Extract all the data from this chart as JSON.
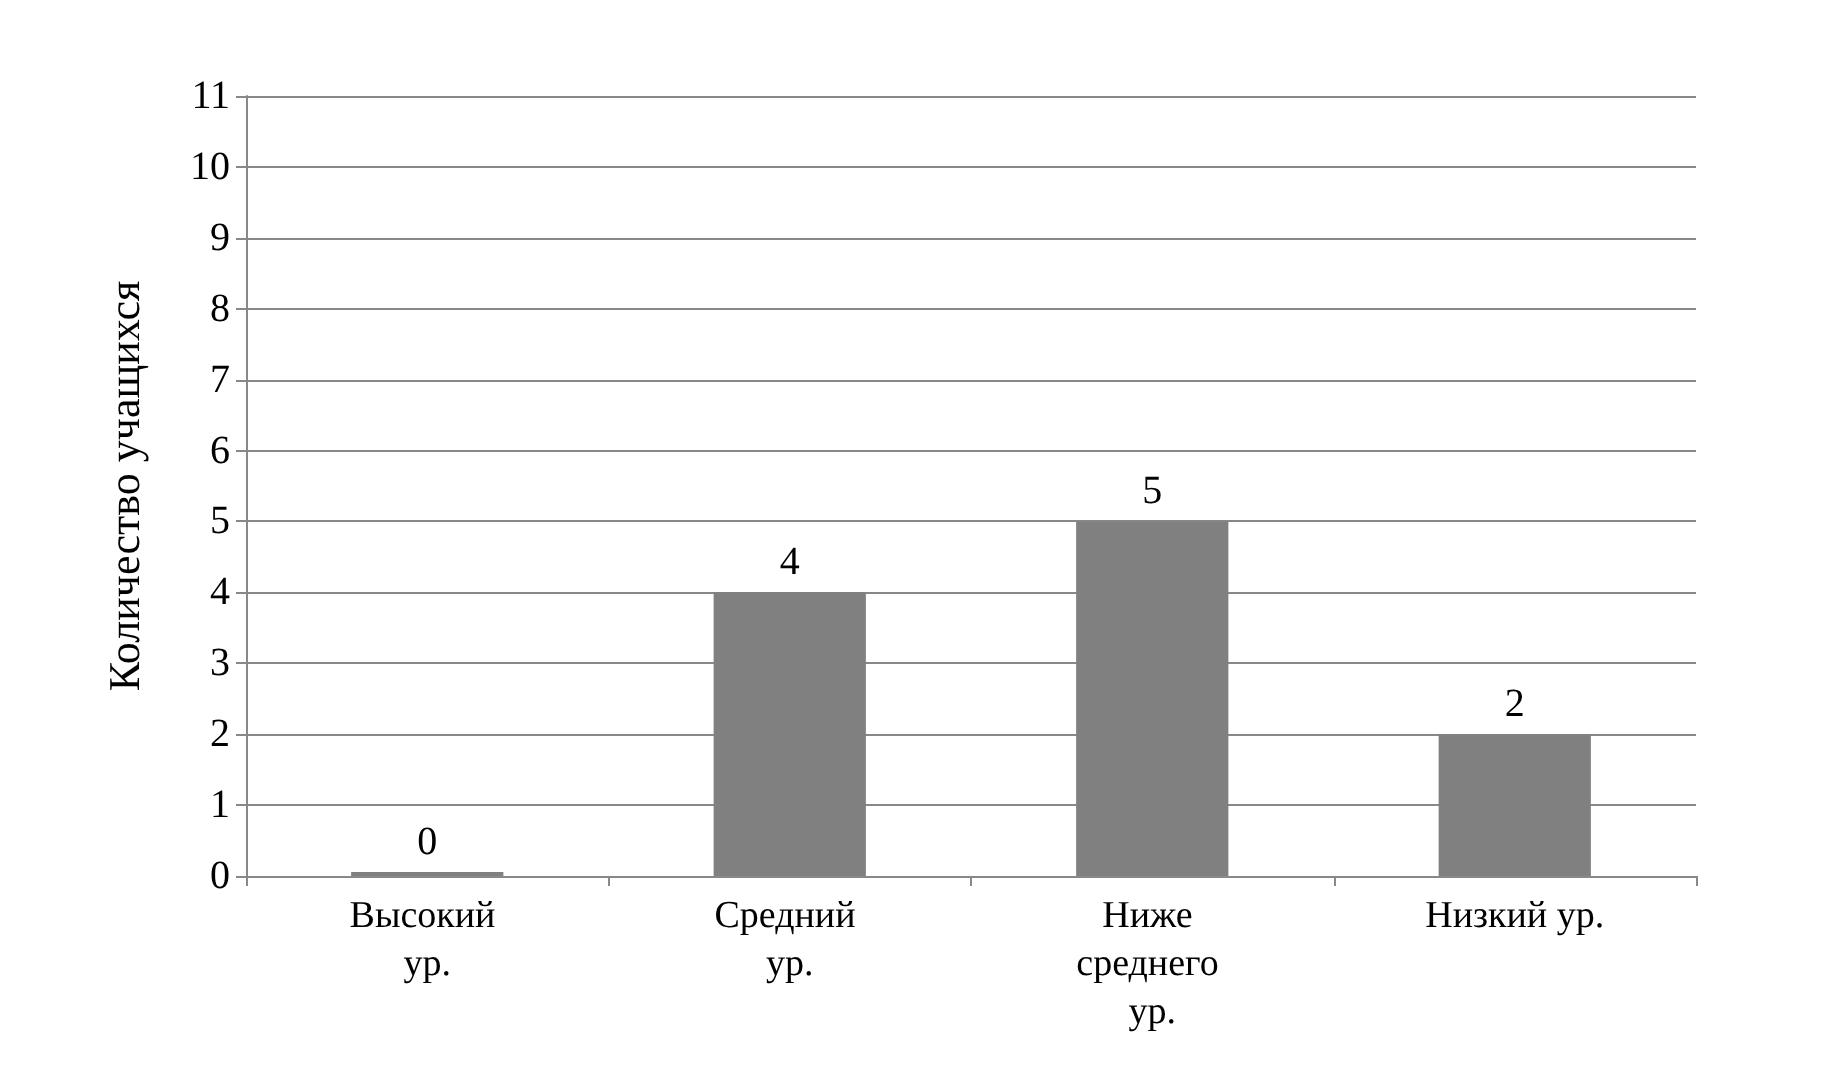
{
  "chart_data": {
    "type": "bar",
    "ylabel": "Количество учащихся",
    "categories": [
      "Высокий ур.",
      "Средний ур.",
      "Ниже среднего ур.",
      "Низкий ур."
    ],
    "values": [
      0,
      4,
      5,
      2
    ],
    "color": "#808080",
    "ylim": [
      0,
      11
    ],
    "yticks": [
      0,
      1,
      2,
      3,
      4,
      5,
      6,
      7,
      8,
      9,
      10,
      11
    ],
    "grid": "y",
    "data_labels": true
  }
}
